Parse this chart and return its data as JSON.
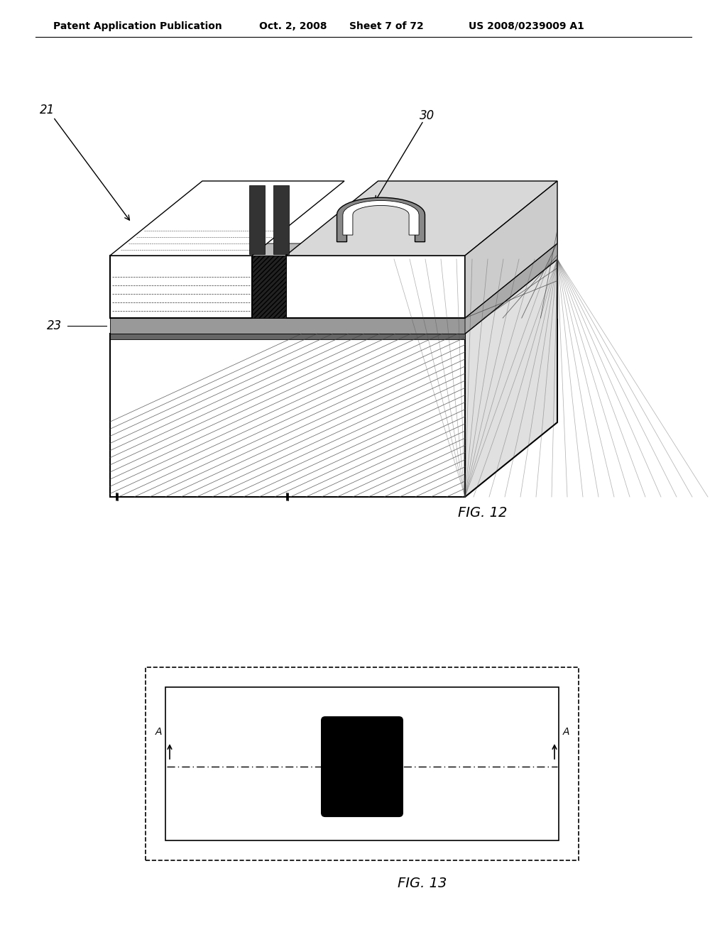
{
  "bg_color": "#ffffff",
  "header_text": "Patent Application Publication",
  "header_date": "Oct. 2, 2008",
  "header_sheet": "Sheet 7 of 72",
  "header_patent": "US 2008/0239009 A1",
  "fig12_label": "FIG. 12",
  "fig13_label": "FIG. 13",
  "label_21": "21",
  "label_23": "23",
  "label_30": "30",
  "line_color": "#000000",
  "bg_color2": "#ffffff"
}
